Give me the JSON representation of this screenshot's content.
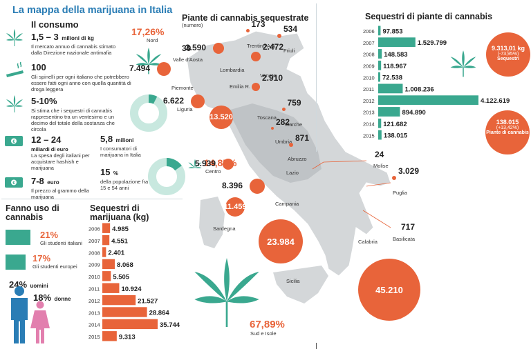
{
  "title": "La mappa della marijuana in Italia",
  "consumo": {
    "heading": "Il consumo",
    "items": [
      {
        "value": "1,5 – 3",
        "unit": "milioni di kg",
        "desc": "Il mercato annuo di cannabis stimato dalla Direzione nazionale antimafia",
        "icon": "cannabis-leaf-icon"
      },
      {
        "value": "100",
        "unit": "",
        "desc": "Gli spinelli per ogni italiano che potrebbero essere fatti ogni anno con quella quantità di droga leggera",
        "icon": "joint-icon"
      },
      {
        "value": "5-10%",
        "unit": "",
        "desc": "Si stima che i sequestri di cannabis rappresentino tra un ventesimo e un decimo del totale della sostanza che circola",
        "icon": "cannabis-leaf-icon"
      },
      {
        "value": "12 – 24",
        "unit": "miliardi di euro",
        "desc": "La spesa degli italiani per acquistare hashish e marijuana",
        "icon": "banknote-icon"
      },
      {
        "value": "7-8",
        "unit": "euro",
        "desc": "Il prezzo al grammo della marijuana",
        "icon": "banknote-icon"
      }
    ],
    "consumatori": {
      "value": "5,8",
      "unit": "milioni",
      "desc": "I consumatori di marijuana in Italia"
    },
    "popolazione": {
      "value": "15",
      "unit": "%",
      "desc": "della popolazione fra i 15 e 54 anni"
    }
  },
  "fanno_uso": {
    "heading": "Fanno uso di cannabis",
    "items": [
      {
        "pct": "21%",
        "label": "Gli studenti italiani",
        "value": 21
      },
      {
        "pct": "17%",
        "label": "Gli studenti europei",
        "value": 17
      }
    ],
    "uomini": {
      "pct": "24%",
      "label": "uomini"
    },
    "donne": {
      "pct": "18%",
      "label": "donne"
    }
  },
  "colors": {
    "orange": "#e8643a",
    "teal": "#3aa88f",
    "map": "#d4d7d9",
    "map_center": "#bfc3c6"
  },
  "map": {
    "heading": "Piante di cannabis sequestrate",
    "subheading": "(numero)",
    "areas": [
      {
        "pct": "17,26%",
        "label": "Nord"
      },
      {
        "pct": "14,85%",
        "label": "Centro"
      },
      {
        "pct": "67,89%",
        "label": "Sud e Isole"
      }
    ],
    "regions": [
      {
        "name": "Valle d'Aosta",
        "value": "30"
      },
      {
        "name": "Trentino A.A.",
        "value": "173"
      },
      {
        "name": "Friuli",
        "value": "534"
      },
      {
        "name": "Lombardia",
        "value": "3.590"
      },
      {
        "name": "Veneto",
        "value": "2.472"
      },
      {
        "name": "Piemonte",
        "value": "7.494"
      },
      {
        "name": "Emilia R.",
        "value": "2.910"
      },
      {
        "name": "Liguria",
        "value": "6.622"
      },
      {
        "name": "Toscana",
        "value": "13.520"
      },
      {
        "name": "Marche",
        "value": "759"
      },
      {
        "name": "Umbria",
        "value": "282"
      },
      {
        "name": "Abruzzo",
        "value": "871"
      },
      {
        "name": "Lazio",
        "value": "5.939"
      },
      {
        "name": "Molise",
        "value": "24"
      },
      {
        "name": "Puglia",
        "value": "3.029"
      },
      {
        "name": "Campania",
        "value": "8.396"
      },
      {
        "name": "Basilicata",
        "value": "717"
      },
      {
        "name": "Sardegna",
        "value": "11.459"
      },
      {
        "name": "Calabria",
        "value": "45.210"
      },
      {
        "name": "Sicilia",
        "value": "23.984"
      }
    ]
  },
  "chart_data": [
    {
      "type": "bar",
      "title": "Sequestri di marijuana (kg)",
      "categories": [
        "2006",
        "2007",
        "2008",
        "2009",
        "2010",
        "2011",
        "2012",
        "2013",
        "2014",
        "2015"
      ],
      "values": [
        4985,
        4551,
        2401,
        8068,
        5505,
        10924,
        21527,
        28864,
        35744,
        9313
      ],
      "labels": [
        "4.985",
        "4.551",
        "2.401",
        "8.068",
        "5.505",
        "10.924",
        "21.527",
        "28.864",
        "35.744",
        "9.313"
      ],
      "color": "#e8643a"
    },
    {
      "type": "bar",
      "title": "Sequestri di piante di cannabis",
      "categories": [
        "2006",
        "2007",
        "2008",
        "2009",
        "2010",
        "2011",
        "2012",
        "2013",
        "2014",
        "2015"
      ],
      "values": [
        97853,
        1529799,
        148583,
        118967,
        72538,
        1008236,
        4122619,
        894890,
        121682,
        138015
      ],
      "labels": [
        "97.853",
        "1.529.799",
        "148.583",
        "118.967",
        "72.538",
        "1.008.236",
        "4.122.619",
        "894.890",
        "121.682",
        "138.015"
      ],
      "color": "#3aa88f"
    },
    {
      "type": "pie",
      "title": "",
      "values": [
        7.5
      ],
      "note": "5-10%"
    },
    {
      "type": "pie",
      "title": "",
      "values": [
        15
      ],
      "note": "15 %"
    }
  ],
  "circles": {
    "kg": {
      "value": "9.313,01 kg",
      "delta": "(-73,95%)",
      "label": "Sequestri"
    },
    "piante": {
      "value": "138.015",
      "delta": "(+13,42%)",
      "label": "Piante di cannabis"
    }
  }
}
